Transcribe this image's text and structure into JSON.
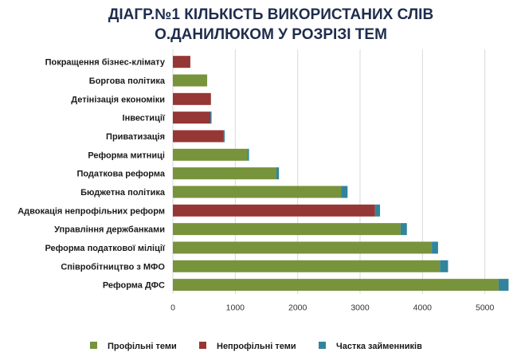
{
  "chart_data": {
    "type": "bar",
    "orientation": "horizontal",
    "stacked": true,
    "title_lines": [
      "ДІАГР.№1 КІЛЬКІСТЬ ВИКОРИСТАНИХ СЛІВ",
      "О.ДАНИЛЮКОМ У РОЗРІЗІ ТЕМ"
    ],
    "categories": [
      "Покращення бізнес-клімату",
      "Боргова політика",
      "Детінізація економіки",
      "Інвестиції",
      "Приватизація",
      "Реформа митниці",
      "Податкова реформа",
      "Бюджетна політика",
      "Адвокація непрофільних реформ",
      "Управління держбанками",
      "Реформа податкової міліції",
      "Співробітництво з МФО",
      "Реформа ДФС"
    ],
    "series": [
      {
        "name": "Профільні теми",
        "color": "#77933c",
        "values": [
          0,
          550,
          0,
          0,
          0,
          1200,
          1660,
          2700,
          0,
          3650,
          4150,
          4280,
          5220
        ]
      },
      {
        "name": "Непрофільні теми",
        "color": "#953735",
        "values": [
          280,
          0,
          610,
          600,
          810,
          0,
          0,
          0,
          3240,
          0,
          0,
          0,
          0
        ]
      },
      {
        "name": "Частка займенників",
        "color": "#31849b",
        "values": [
          0,
          0,
          0,
          20,
          20,
          20,
          40,
          100,
          80,
          100,
          100,
          130,
          160
        ]
      }
    ],
    "x_ticks": [
      "0",
      "1000",
      "2000",
      "3000",
      "4000",
      "5000"
    ],
    "xlim": [
      0,
      5400
    ],
    "grid": true,
    "legend_position": "bottom"
  }
}
